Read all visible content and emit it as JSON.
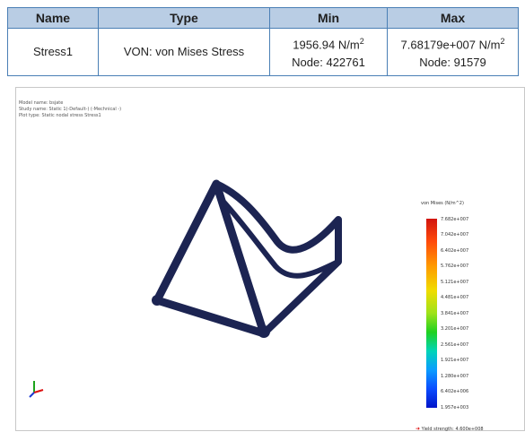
{
  "table": {
    "headers": [
      "Name",
      "Type",
      "Min",
      "Max"
    ],
    "row": {
      "name": "Stress1",
      "type": "VON: von Mises Stress",
      "min_value": "1956.94 N/m",
      "min_exp": "2",
      "min_node": "Node: 422761",
      "max_value": "7.68179e+007  N/m",
      "max_exp": "2",
      "max_node": "Node: 91579"
    }
  },
  "plot": {
    "meta_lines": [
      "Model name: bsjate",
      "Study name: Static 1(-Default-) (-Mechnical -)",
      "Plot type: Static nodal stress Stress1"
    ],
    "legend_title": "von Mises (N/m^2)",
    "legend_ticks": [
      "7.682e+007",
      "7.042e+007",
      "6.402e+007",
      "5.762e+007",
      "5.121e+007",
      "4.481e+007",
      "3.841e+007",
      "3.201e+007",
      "2.561e+007",
      "1.921e+007",
      "1.280e+007",
      "6.402e+006",
      "1.957e+003"
    ],
    "yield_label": "Yield strength: 4.600e+008",
    "model_color": "#1c2452"
  }
}
